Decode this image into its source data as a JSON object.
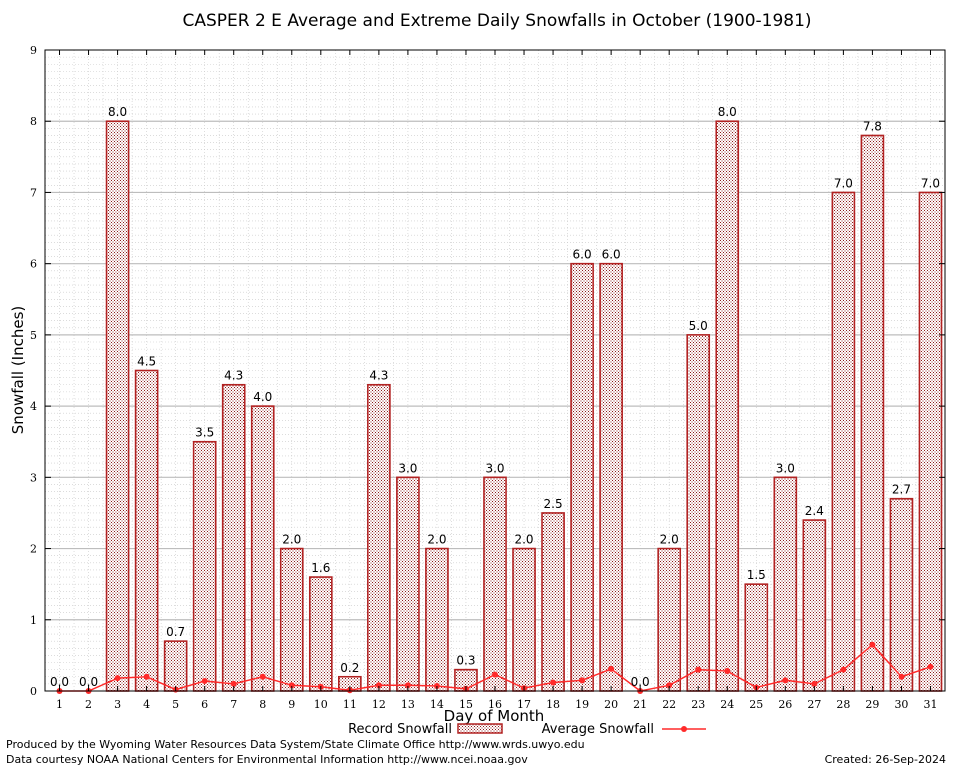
{
  "chart_data": {
    "type": "bar",
    "title": "CASPER 2 E Average and Extreme Daily Snowfalls in October (1900-1981)",
    "xlabel": "Day of Month",
    "ylabel": "Snowfall (Inches)",
    "ylim": [
      0,
      9
    ],
    "yticks": [
      "0",
      "1",
      "2",
      "3",
      "4",
      "5",
      "6",
      "7",
      "8",
      "9"
    ],
    "categories": [
      "1",
      "2",
      "3",
      "4",
      "5",
      "6",
      "7",
      "8",
      "9",
      "10",
      "11",
      "12",
      "13",
      "14",
      "15",
      "16",
      "17",
      "18",
      "19",
      "20",
      "21",
      "22",
      "23",
      "24",
      "25",
      "26",
      "27",
      "28",
      "29",
      "30",
      "31"
    ],
    "series": [
      {
        "name": "Record Snowfall",
        "kind": "bar",
        "color": "#b22222",
        "values": [
          0.0,
          0.0,
          8.0,
          4.5,
          0.7,
          3.5,
          4.3,
          4.0,
          2.0,
          1.6,
          0.2,
          4.3,
          3.0,
          2.0,
          0.3,
          3.0,
          2.0,
          2.5,
          6.0,
          6.0,
          0.0,
          2.0,
          5.0,
          8.0,
          1.5,
          3.0,
          2.4,
          7.0,
          7.8,
          2.7,
          7.0
        ],
        "labels": [
          "0.0",
          "0.0",
          "8.0",
          "4.5",
          "0.7",
          "3.5",
          "4.3",
          "4.0",
          "2.0",
          "1.6",
          "0.2",
          "4.3",
          "3.0",
          "2.0",
          "0.3",
          "3.0",
          "2.0",
          "2.5",
          "6.0",
          "6.0",
          "0.0",
          "2.0",
          "5.0",
          "8.0",
          "1.5",
          "3.0",
          "2.4",
          "7.0",
          "7.8",
          "2.7",
          "7.0"
        ]
      },
      {
        "name": "Average Snowfall",
        "kind": "line",
        "color": "#ff2a2a",
        "values": [
          0.0,
          0.0,
          0.18,
          0.2,
          0.02,
          0.14,
          0.1,
          0.2,
          0.08,
          0.06,
          0.01,
          0.08,
          0.08,
          0.07,
          0.03,
          0.23,
          0.04,
          0.12,
          0.15,
          0.31,
          0.0,
          0.08,
          0.3,
          0.28,
          0.05,
          0.15,
          0.1,
          0.3,
          0.65,
          0.2,
          0.34
        ]
      }
    ],
    "grid": true,
    "legend": "bottom-center"
  },
  "footer": {
    "credit_line1": "Produced by the Wyoming Water Resources Data System/State Climate Office http://www.wrds.uwyo.edu",
    "credit_line2": "Data courtesy NOAA National Centers for Environmental Information http://www.ncei.noaa.gov",
    "created": "Created:  26-Sep-2024"
  }
}
